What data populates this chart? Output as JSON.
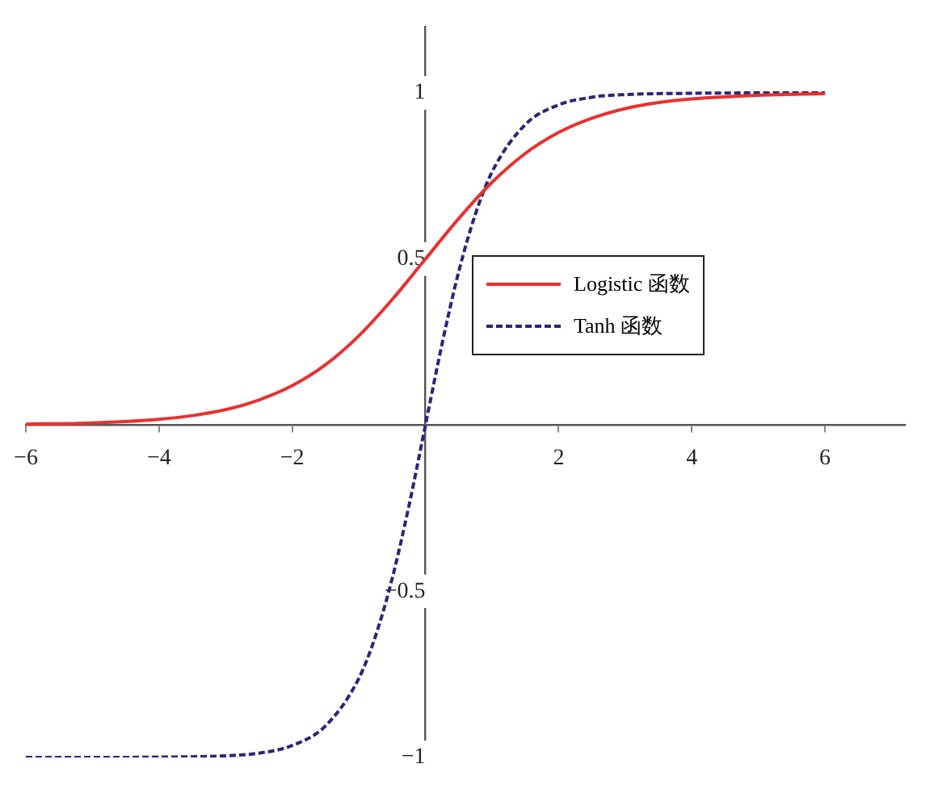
{
  "chart_data": {
    "type": "line",
    "xlim": [
      -6,
      7.2
    ],
    "ylim": [
      -1,
      1.2
    ],
    "xticks": [
      {
        "value": -6,
        "label": "−6"
      },
      {
        "value": -4,
        "label": "−4"
      },
      {
        "value": -2,
        "label": "−2"
      },
      2,
      4,
      6
    ],
    "yticks": [
      {
        "value": -1,
        "label": "−1"
      },
      {
        "value": -0.5,
        "label": "−0.5"
      },
      0.5,
      1
    ],
    "grid": false,
    "legend": "right",
    "marker": "none",
    "series": [
      {
        "name": "Logistic 函数",
        "color": "#e8312f",
        "line_style": "solid",
        "x": [
          -6,
          -5,
          -4,
          -3.5,
          -3,
          -2.5,
          -2,
          -1.5,
          -1,
          -0.5,
          0,
          0.5,
          1,
          1.5,
          2,
          2.5,
          3,
          3.5,
          4,
          5,
          6
        ],
        "values": [
          0.003,
          0.007,
          0.018,
          0.029,
          0.047,
          0.076,
          0.119,
          0.182,
          0.269,
          0.378,
          0.5,
          0.622,
          0.731,
          0.818,
          0.881,
          0.924,
          0.953,
          0.971,
          0.982,
          0.993,
          0.998
        ]
      },
      {
        "name": "Tanh 函数",
        "color": "#2e2378",
        "line_style": "dashed",
        "x": [
          -6,
          -5,
          -4,
          -3,
          -2.5,
          -2,
          -1.5,
          -1,
          -0.75,
          -0.5,
          -0.25,
          0,
          0.25,
          0.5,
          0.75,
          1,
          1.5,
          2,
          2.5,
          3,
          4,
          5,
          6
        ],
        "values": [
          -1.0,
          -1.0,
          -0.999,
          -0.995,
          -0.987,
          -0.964,
          -0.905,
          -0.762,
          -0.635,
          -0.462,
          -0.245,
          0,
          0.245,
          0.462,
          0.635,
          0.762,
          0.905,
          0.964,
          0.987,
          0.995,
          0.999,
          1.0,
          1.0
        ]
      }
    ]
  }
}
